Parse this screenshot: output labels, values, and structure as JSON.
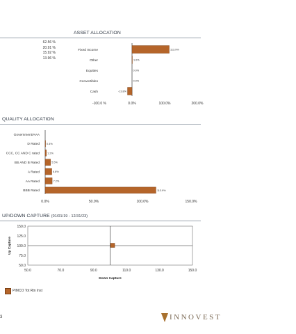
{
  "asset_allocation": {
    "title": "ASSET ALLOCATION",
    "percent_list": [
      "62.56 %",
      "20.91 %",
      "15.92 %",
      "13.96 %"
    ]
  },
  "quality_allocation": {
    "title": "QUALITY ALLOCATION"
  },
  "updown_capture": {
    "title": "UP/DOWN CAPTURE",
    "period": "(01/01/19 - 12/31/23)"
  },
  "legend": {
    "label": "PIMCO Tot Rtn Inst",
    "color": "#b5652a"
  },
  "footer": {
    "page_number": "3",
    "logo_text": "INNOVEST"
  },
  "chart_data": [
    {
      "type": "bar",
      "orientation": "horizontal",
      "title": "ASSET ALLOCATION",
      "categories": [
        "Fixed Income",
        "Other",
        "Equities",
        "Convertibles",
        "Cash"
      ],
      "values": [
        113.9,
        1.0,
        0.0,
        0.0,
        -13.8
      ],
      "value_labels": [
        "113.9%",
        "1.0%",
        "0.0%",
        "0.0%",
        "-13.8%"
      ],
      "xlim": [
        -100,
        200
      ],
      "xticks": [
        -100,
        0,
        100,
        200
      ],
      "xtick_labels": [
        "-100.0 %",
        "0.0%",
        "100.0%",
        "200.0%"
      ],
      "color": "#b5652a"
    },
    {
      "type": "bar",
      "orientation": "horizontal",
      "title": "QUALITY ALLOCATION",
      "categories": [
        "Government/AAA",
        "D Rated",
        "CCC, CC AND C rated",
        "BB AND B Rated",
        "A Rated",
        "AA Rated",
        "BBB Rated"
      ],
      "values": [
        0.0,
        0.4,
        1.2,
        5.5,
        6.8,
        7.2,
        113.9
      ],
      "value_labels": [
        "",
        "0.4%",
        "1.2%",
        "5.5%",
        "6.8%",
        "7.2%",
        "113.9%"
      ],
      "xlim": [
        0,
        150
      ],
      "xticks": [
        0,
        50,
        100,
        150
      ],
      "xtick_labels": [
        "0.0%",
        "50.0%",
        "100.0%",
        "150.0%"
      ],
      "color": "#b5652a"
    },
    {
      "type": "scatter",
      "title": "UP/DOWN CAPTURE",
      "xlabel": "Down Capture",
      "ylabel": "Up Capture",
      "xlim": [
        50,
        150
      ],
      "ylim": [
        50,
        150
      ],
      "xticks": [
        50,
        70,
        90,
        110,
        130,
        150
      ],
      "xtick_labels": [
        "50.0",
        "70.0",
        "90.0",
        "110.0",
        "130.0",
        "150.0"
      ],
      "yticks": [
        50,
        75,
        100,
        125,
        150
      ],
      "ytick_labels": [
        "50.0",
        "75.0",
        "100.0",
        "125.0",
        "150.0"
      ],
      "reference_x": 100,
      "reference_y": 100,
      "series": [
        {
          "name": "PIMCO Tot Rtn Inst",
          "x": [
            101.5
          ],
          "y": [
            100.8
          ]
        }
      ],
      "color": "#b5652a"
    }
  ]
}
